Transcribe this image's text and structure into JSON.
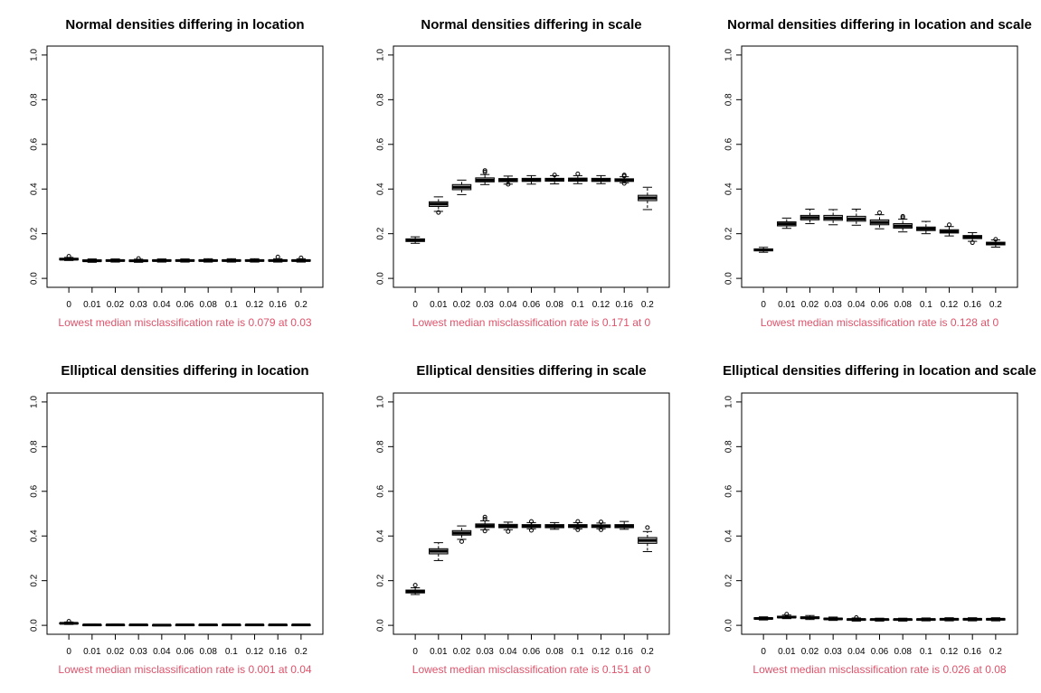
{
  "colors": {
    "box_fill": "#bebebe",
    "subtitle": "#df536b",
    "axis": "#000000"
  },
  "chart_data": [
    {
      "type": "boxplot",
      "title": "Normal densities differing in location",
      "subtitle": "Lowest median misclassification rate is 0.079 at 0.03",
      "categories": [
        "0",
        "0.01",
        "0.02",
        "0.03",
        "0.04",
        "0.06",
        "0.08",
        "0.1",
        "0.12",
        "0.16",
        "0.2"
      ],
      "yticks": [
        "0.0",
        "0.2",
        "0.4",
        "0.6",
        "0.8",
        "1.0"
      ],
      "ylim": [
        0,
        1
      ],
      "boxes": [
        {
          "min": 0.08,
          "q1": 0.083,
          "median": 0.086,
          "q3": 0.09,
          "max": 0.094,
          "outliers": [
            0.099
          ]
        },
        {
          "min": 0.072,
          "q1": 0.076,
          "median": 0.079,
          "q3": 0.083,
          "max": 0.087,
          "outliers": []
        },
        {
          "min": 0.073,
          "q1": 0.077,
          "median": 0.08,
          "q3": 0.083,
          "max": 0.087,
          "outliers": []
        },
        {
          "min": 0.072,
          "q1": 0.076,
          "median": 0.079,
          "q3": 0.082,
          "max": 0.086,
          "outliers": [
            0.089
          ]
        },
        {
          "min": 0.073,
          "q1": 0.077,
          "median": 0.08,
          "q3": 0.083,
          "max": 0.087,
          "outliers": []
        },
        {
          "min": 0.073,
          "q1": 0.077,
          "median": 0.08,
          "q3": 0.083,
          "max": 0.087,
          "outliers": []
        },
        {
          "min": 0.073,
          "q1": 0.077,
          "median": 0.08,
          "q3": 0.083,
          "max": 0.088,
          "outliers": []
        },
        {
          "min": 0.073,
          "q1": 0.077,
          "median": 0.08,
          "q3": 0.083,
          "max": 0.088,
          "outliers": []
        },
        {
          "min": 0.073,
          "q1": 0.077,
          "median": 0.08,
          "q3": 0.083,
          "max": 0.088,
          "outliers": []
        },
        {
          "min": 0.073,
          "q1": 0.077,
          "median": 0.08,
          "q3": 0.083,
          "max": 0.088,
          "outliers": [
            0.096
          ]
        },
        {
          "min": 0.073,
          "q1": 0.077,
          "median": 0.08,
          "q3": 0.083,
          "max": 0.088,
          "outliers": [
            0.092
          ]
        }
      ]
    },
    {
      "type": "boxplot",
      "title": "Normal densities differing in scale",
      "subtitle": "Lowest median misclassification rate is 0.171 at 0",
      "categories": [
        "0",
        "0.01",
        "0.02",
        "0.03",
        "0.04",
        "0.06",
        "0.08",
        "0.1",
        "0.12",
        "0.16",
        "0.2"
      ],
      "yticks": [
        "0.0",
        "0.2",
        "0.4",
        "0.6",
        "0.8",
        "1.0"
      ],
      "ylim": [
        0,
        1
      ],
      "boxes": [
        {
          "min": 0.157,
          "q1": 0.165,
          "median": 0.171,
          "q3": 0.177,
          "max": 0.186,
          "outliers": []
        },
        {
          "min": 0.3,
          "q1": 0.322,
          "median": 0.333,
          "q3": 0.343,
          "max": 0.365,
          "outliers": [
            0.295
          ]
        },
        {
          "min": 0.375,
          "q1": 0.397,
          "median": 0.408,
          "q3": 0.42,
          "max": 0.44,
          "outliers": []
        },
        {
          "min": 0.42,
          "q1": 0.432,
          "median": 0.44,
          "q3": 0.45,
          "max": 0.465,
          "outliers": [
            0.476,
            0.483
          ]
        },
        {
          "min": 0.422,
          "q1": 0.433,
          "median": 0.44,
          "q3": 0.447,
          "max": 0.458,
          "outliers": [
            0.421
          ]
        },
        {
          "min": 0.422,
          "q1": 0.434,
          "median": 0.441,
          "q3": 0.448,
          "max": 0.46,
          "outliers": []
        },
        {
          "min": 0.423,
          "q1": 0.435,
          "median": 0.442,
          "q3": 0.448,
          "max": 0.46,
          "outliers": [
            0.463
          ]
        },
        {
          "min": 0.424,
          "q1": 0.435,
          "median": 0.442,
          "q3": 0.449,
          "max": 0.46,
          "outliers": [
            0.468
          ]
        },
        {
          "min": 0.424,
          "q1": 0.434,
          "median": 0.441,
          "q3": 0.448,
          "max": 0.46,
          "outliers": []
        },
        {
          "min": 0.428,
          "q1": 0.434,
          "median": 0.44,
          "q3": 0.446,
          "max": 0.455,
          "outliers": [
            0.425,
            0.463,
            0.458
          ]
        },
        {
          "min": 0.308,
          "q1": 0.348,
          "median": 0.36,
          "q3": 0.372,
          "max": 0.408,
          "outliers": []
        }
      ]
    },
    {
      "type": "boxplot",
      "title": "Normal densities differing in location and scale",
      "subtitle": "Lowest median misclassification rate is 0.128 at 0",
      "categories": [
        "0",
        "0.01",
        "0.02",
        "0.03",
        "0.04",
        "0.06",
        "0.08",
        "0.1",
        "0.12",
        "0.16",
        "0.2"
      ],
      "yticks": [
        "0.0",
        "0.2",
        "0.4",
        "0.6",
        "0.8",
        "1.0"
      ],
      "ylim": [
        0,
        1
      ],
      "boxes": [
        {
          "min": 0.117,
          "q1": 0.123,
          "median": 0.128,
          "q3": 0.132,
          "max": 0.139,
          "outliers": []
        },
        {
          "min": 0.224,
          "q1": 0.235,
          "median": 0.244,
          "q3": 0.253,
          "max": 0.27,
          "outliers": []
        },
        {
          "min": 0.245,
          "q1": 0.262,
          "median": 0.272,
          "q3": 0.282,
          "max": 0.31,
          "outliers": []
        },
        {
          "min": 0.24,
          "q1": 0.26,
          "median": 0.27,
          "q3": 0.282,
          "max": 0.308,
          "outliers": []
        },
        {
          "min": 0.238,
          "q1": 0.256,
          "median": 0.266,
          "q3": 0.278,
          "max": 0.31,
          "outliers": []
        },
        {
          "min": 0.222,
          "q1": 0.24,
          "median": 0.25,
          "q3": 0.262,
          "max": 0.285,
          "outliers": [
            0.294
          ]
        },
        {
          "min": 0.208,
          "q1": 0.225,
          "median": 0.234,
          "q3": 0.245,
          "max": 0.265,
          "outliers": [
            0.272,
            0.278
          ]
        },
        {
          "min": 0.2,
          "q1": 0.214,
          "median": 0.222,
          "q3": 0.23,
          "max": 0.255,
          "outliers": []
        },
        {
          "min": 0.19,
          "q1": 0.203,
          "median": 0.21,
          "q3": 0.218,
          "max": 0.232,
          "outliers": [
            0.24
          ]
        },
        {
          "min": 0.166,
          "q1": 0.178,
          "median": 0.185,
          "q3": 0.192,
          "max": 0.205,
          "outliers": [
            0.16
          ]
        },
        {
          "min": 0.14,
          "q1": 0.15,
          "median": 0.156,
          "q3": 0.162,
          "max": 0.172,
          "outliers": [
            0.175
          ]
        }
      ]
    },
    {
      "type": "boxplot",
      "title": "Elliptical densities differing in location",
      "subtitle": "Lowest median misclassification rate is 0.001 at 0.04",
      "categories": [
        "0",
        "0.01",
        "0.02",
        "0.03",
        "0.04",
        "0.06",
        "0.08",
        "0.1",
        "0.12",
        "0.16",
        "0.2"
      ],
      "yticks": [
        "0.0",
        "0.2",
        "0.4",
        "0.6",
        "0.8",
        "1.0"
      ],
      "ylim": [
        0,
        1
      ],
      "boxes": [
        {
          "min": 0.004,
          "q1": 0.007,
          "median": 0.009,
          "q3": 0.011,
          "max": 0.015,
          "outliers": [
            0.018
          ]
        },
        {
          "min": 0.0,
          "q1": 0.001,
          "median": 0.002,
          "q3": 0.003,
          "max": 0.005,
          "outliers": []
        },
        {
          "min": 0.0,
          "q1": 0.001,
          "median": 0.002,
          "q3": 0.003,
          "max": 0.005,
          "outliers": []
        },
        {
          "min": 0.0,
          "q1": 0.001,
          "median": 0.002,
          "q3": 0.003,
          "max": 0.004,
          "outliers": []
        },
        {
          "min": 0.0,
          "q1": 0.0,
          "median": 0.001,
          "q3": 0.002,
          "max": 0.004,
          "outliers": []
        },
        {
          "min": 0.0,
          "q1": 0.001,
          "median": 0.002,
          "q3": 0.003,
          "max": 0.004,
          "outliers": []
        },
        {
          "min": 0.0,
          "q1": 0.001,
          "median": 0.002,
          "q3": 0.003,
          "max": 0.004,
          "outliers": []
        },
        {
          "min": 0.0,
          "q1": 0.001,
          "median": 0.002,
          "q3": 0.003,
          "max": 0.004,
          "outliers": []
        },
        {
          "min": 0.0,
          "q1": 0.001,
          "median": 0.002,
          "q3": 0.003,
          "max": 0.004,
          "outliers": []
        },
        {
          "min": 0.0,
          "q1": 0.001,
          "median": 0.002,
          "q3": 0.003,
          "max": 0.004,
          "outliers": []
        },
        {
          "min": 0.0,
          "q1": 0.001,
          "median": 0.002,
          "q3": 0.003,
          "max": 0.004,
          "outliers": []
        }
      ]
    },
    {
      "type": "boxplot",
      "title": "Elliptical densities differing in scale",
      "subtitle": "Lowest median misclassification rate is 0.151 at 0",
      "categories": [
        "0",
        "0.01",
        "0.02",
        "0.03",
        "0.04",
        "0.06",
        "0.08",
        "0.1",
        "0.12",
        "0.16",
        "0.2"
      ],
      "yticks": [
        "0.0",
        "0.2",
        "0.4",
        "0.6",
        "0.8",
        "1.0"
      ],
      "ylim": [
        0,
        1
      ],
      "boxes": [
        {
          "min": 0.138,
          "q1": 0.145,
          "median": 0.151,
          "q3": 0.158,
          "max": 0.168,
          "outliers": [
            0.18
          ]
        },
        {
          "min": 0.29,
          "q1": 0.32,
          "median": 0.332,
          "q3": 0.343,
          "max": 0.37,
          "outliers": []
        },
        {
          "min": 0.385,
          "q1": 0.404,
          "median": 0.413,
          "q3": 0.424,
          "max": 0.445,
          "outliers": [
            0.375
          ]
        },
        {
          "min": 0.428,
          "q1": 0.438,
          "median": 0.446,
          "q3": 0.454,
          "max": 0.468,
          "outliers": [
            0.475,
            0.485,
            0.422
          ]
        },
        {
          "min": 0.428,
          "q1": 0.437,
          "median": 0.444,
          "q3": 0.452,
          "max": 0.462,
          "outliers": [
            0.42
          ]
        },
        {
          "min": 0.432,
          "q1": 0.438,
          "median": 0.445,
          "q3": 0.451,
          "max": 0.46,
          "outliers": [
            0.465,
            0.425
          ]
        },
        {
          "min": 0.43,
          "q1": 0.437,
          "median": 0.444,
          "q3": 0.451,
          "max": 0.46,
          "outliers": []
        },
        {
          "min": 0.432,
          "q1": 0.438,
          "median": 0.445,
          "q3": 0.451,
          "max": 0.46,
          "outliers": [
            0.465,
            0.428
          ]
        },
        {
          "min": 0.432,
          "q1": 0.438,
          "median": 0.444,
          "q3": 0.45,
          "max": 0.458,
          "outliers": [
            0.463,
            0.428
          ]
        },
        {
          "min": 0.43,
          "q1": 0.437,
          "median": 0.444,
          "q3": 0.451,
          "max": 0.465,
          "outliers": []
        },
        {
          "min": 0.33,
          "q1": 0.367,
          "median": 0.38,
          "q3": 0.393,
          "max": 0.42,
          "outliers": [
            0.438
          ]
        }
      ]
    },
    {
      "type": "boxplot",
      "title": "Elliptical densities differing in location and scale",
      "subtitle": "Lowest median misclassification rate is 0.026 at 0.08",
      "categories": [
        "0",
        "0.01",
        "0.02",
        "0.03",
        "0.04",
        "0.06",
        "0.08",
        "0.1",
        "0.12",
        "0.16",
        "0.2"
      ],
      "yticks": [
        "0.0",
        "0.2",
        "0.4",
        "0.6",
        "0.8",
        "1.0"
      ],
      "ylim": [
        0,
        1
      ],
      "boxes": [
        {
          "min": 0.024,
          "q1": 0.028,
          "median": 0.031,
          "q3": 0.034,
          "max": 0.038,
          "outliers": []
        },
        {
          "min": 0.03,
          "q1": 0.034,
          "median": 0.037,
          "q3": 0.041,
          "max": 0.046,
          "outliers": [
            0.05
          ]
        },
        {
          "min": 0.026,
          "q1": 0.031,
          "median": 0.034,
          "q3": 0.038,
          "max": 0.044,
          "outliers": []
        },
        {
          "min": 0.022,
          "q1": 0.026,
          "median": 0.029,
          "q3": 0.032,
          "max": 0.037,
          "outliers": []
        },
        {
          "min": 0.019,
          "q1": 0.023,
          "median": 0.026,
          "q3": 0.029,
          "max": 0.033,
          "outliers": [
            0.035
          ]
        },
        {
          "min": 0.019,
          "q1": 0.023,
          "median": 0.026,
          "q3": 0.028,
          "max": 0.032,
          "outliers": []
        },
        {
          "min": 0.019,
          "q1": 0.023,
          "median": 0.026,
          "q3": 0.028,
          "max": 0.032,
          "outliers": []
        },
        {
          "min": 0.02,
          "q1": 0.023,
          "median": 0.026,
          "q3": 0.029,
          "max": 0.033,
          "outliers": []
        },
        {
          "min": 0.02,
          "q1": 0.024,
          "median": 0.027,
          "q3": 0.03,
          "max": 0.034,
          "outliers": []
        },
        {
          "min": 0.02,
          "q1": 0.024,
          "median": 0.027,
          "q3": 0.03,
          "max": 0.034,
          "outliers": []
        },
        {
          "min": 0.02,
          "q1": 0.024,
          "median": 0.027,
          "q3": 0.03,
          "max": 0.034,
          "outliers": []
        }
      ]
    }
  ]
}
